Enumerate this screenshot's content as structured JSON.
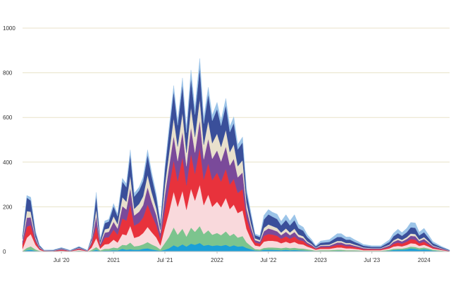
{
  "chart_data": {
    "type": "area",
    "stacked": true,
    "title": "",
    "xlabel": "",
    "ylabel": "",
    "ylim": [
      0,
      1000
    ],
    "xlim": [
      "2020-02-15",
      "2024-03-31"
    ],
    "grid": true,
    "legend": "none",
    "x_tick_labels": [
      {
        "date": "2020-07-01",
        "label": "Jul '20"
      },
      {
        "date": "2021-01-01",
        "label": "2021"
      },
      {
        "date": "2021-07-01",
        "label": "Jul '21"
      },
      {
        "date": "2022-01-01",
        "label": "2022"
      },
      {
        "date": "2022-07-01",
        "label": "Jul '22"
      },
      {
        "date": "2023-01-01",
        "label": "2023"
      },
      {
        "date": "2023-07-01",
        "label": "Jul '23"
      },
      {
        "date": "2024-01-01",
        "label": "2024"
      }
    ],
    "y_tick_labels": [
      0,
      200,
      400,
      600,
      800,
      1000
    ],
    "series_colors": [
      "#1aa0d8",
      "#7cc48e",
      "#f9d9dc",
      "#e8323c",
      "#7a4a9a",
      "#e8e0cc",
      "#3a4f9a",
      "#9cc4e8"
    ],
    "x": [
      "2020-02-15",
      "2020-03-01",
      "2020-03-15",
      "2020-04-01",
      "2020-04-15",
      "2020-05-01",
      "2020-06-01",
      "2020-07-01",
      "2020-08-01",
      "2020-09-01",
      "2020-10-01",
      "2020-10-15",
      "2020-11-01",
      "2020-11-15",
      "2020-12-01",
      "2020-12-15",
      "2021-01-01",
      "2021-01-15",
      "2021-02-01",
      "2021-02-15",
      "2021-03-01",
      "2021-03-15",
      "2021-04-01",
      "2021-04-15",
      "2021-05-01",
      "2021-05-15",
      "2021-06-01",
      "2021-06-15",
      "2021-07-01",
      "2021-07-15",
      "2021-08-01",
      "2021-08-15",
      "2021-09-01",
      "2021-09-15",
      "2021-10-01",
      "2021-10-15",
      "2021-11-01",
      "2021-11-15",
      "2021-12-01",
      "2021-12-15",
      "2022-01-01",
      "2022-01-15",
      "2022-02-01",
      "2022-02-15",
      "2022-03-01",
      "2022-03-15",
      "2022-04-01",
      "2022-04-15",
      "2022-05-01",
      "2022-05-15",
      "2022-06-01",
      "2022-06-15",
      "2022-07-01",
      "2022-07-15",
      "2022-08-01",
      "2022-08-15",
      "2022-09-01",
      "2022-09-15",
      "2022-10-01",
      "2022-10-15",
      "2022-11-01",
      "2022-11-15",
      "2022-12-01",
      "2022-12-15",
      "2023-01-01",
      "2023-02-01",
      "2023-03-01",
      "2023-03-15",
      "2023-04-01",
      "2023-04-15",
      "2023-05-01",
      "2023-05-15",
      "2023-06-01",
      "2023-07-01",
      "2023-08-01",
      "2023-09-01",
      "2023-09-15",
      "2023-10-01",
      "2023-10-15",
      "2023-11-01",
      "2023-11-15",
      "2023-12-01",
      "2023-12-15",
      "2024-01-01",
      "2024-01-15",
      "2024-02-01",
      "2024-03-01",
      "2024-03-31"
    ],
    "series": [
      {
        "values": [
          0,
          6,
          8,
          3,
          1,
          0,
          0,
          1,
          0,
          2,
          0,
          2,
          8,
          2,
          4,
          4,
          6,
          5,
          12,
          8,
          10,
          8,
          8,
          12,
          14,
          10,
          6,
          3,
          8,
          14,
          28,
          20,
          32,
          22,
          35,
          30,
          38,
          26,
          30,
          25,
          28,
          25,
          30,
          22,
          28,
          22,
          24,
          16,
          10,
          5,
          4,
          8,
          8,
          8,
          7,
          6,
          8,
          6,
          7,
          6,
          5,
          4,
          3,
          2,
          2,
          2,
          3,
          3,
          2,
          2,
          2,
          2,
          1,
          1,
          1,
          4,
          7,
          8,
          8,
          10,
          14,
          12,
          8,
          10,
          8,
          4,
          2,
          0
        ]
      },
      {
        "values": [
          2,
          10,
          15,
          6,
          2,
          0,
          0,
          1,
          0,
          2,
          0,
          5,
          12,
          3,
          8,
          8,
          12,
          10,
          18,
          20,
          30,
          15,
          18,
          20,
          28,
          22,
          16,
          6,
          30,
          50,
          80,
          55,
          70,
          45,
          72,
          58,
          76,
          52,
          65,
          50,
          55,
          48,
          60,
          48,
          52,
          40,
          45,
          25,
          14,
          6,
          5,
          8,
          10,
          10,
          10,
          9,
          10,
          9,
          10,
          8,
          8,
          6,
          4,
          2,
          4,
          4,
          5,
          5,
          4,
          4,
          4,
          3,
          2,
          2,
          2,
          4,
          5,
          5,
          5,
          7,
          8,
          8,
          7,
          8,
          6,
          4,
          2,
          0
        ]
      },
      {
        "values": [
          10,
          45,
          55,
          20,
          5,
          1,
          1,
          2,
          1,
          4,
          1,
          10,
          40,
          8,
          20,
          22,
          35,
          25,
          48,
          45,
          75,
          38,
          42,
          50,
          68,
          55,
          40,
          18,
          70,
          110,
          160,
          125,
          170,
          120,
          175,
          140,
          185,
          130,
          160,
          125,
          140,
          125,
          150,
          120,
          130,
          110,
          115,
          60,
          30,
          16,
          14,
          28,
          30,
          30,
          28,
          22,
          26,
          22,
          26,
          20,
          18,
          12,
          8,
          4,
          6,
          6,
          10,
          10,
          8,
          8,
          6,
          5,
          3,
          3,
          3,
          6,
          10,
          12,
          10,
          12,
          15,
          15,
          10,
          12,
          9,
          5,
          3,
          1
        ]
      },
      {
        "values": [
          20,
          50,
          40,
          15,
          5,
          2,
          1,
          4,
          1,
          4,
          1,
          15,
          55,
          10,
          30,
          30,
          45,
          35,
          70,
          65,
          95,
          55,
          60,
          70,
          100,
          78,
          55,
          30,
          80,
          110,
          140,
          115,
          150,
          110,
          155,
          120,
          165,
          115,
          140,
          120,
          130,
          115,
          130,
          110,
          115,
          90,
          95,
          50,
          30,
          14,
          12,
          26,
          30,
          28,
          25,
          20,
          24,
          20,
          24,
          18,
          16,
          10,
          8,
          4,
          7,
          8,
          12,
          12,
          10,
          10,
          8,
          7,
          5,
          4,
          4,
          7,
          12,
          15,
          12,
          15,
          18,
          18,
          12,
          14,
          10,
          6,
          3,
          1
        ]
      },
      {
        "values": [
          15,
          40,
          35,
          12,
          4,
          1,
          1,
          3,
          1,
          3,
          1,
          10,
          45,
          10,
          22,
          24,
          35,
          28,
          55,
          50,
          75,
          45,
          50,
          55,
          78,
          60,
          45,
          25,
          65,
          90,
          110,
          90,
          115,
          85,
          120,
          95,
          125,
          90,
          110,
          95,
          100,
          90,
          100,
          85,
          90,
          70,
          75,
          40,
          24,
          10,
          9,
          20,
          25,
          22,
          20,
          16,
          20,
          16,
          20,
          14,
          12,
          8,
          6,
          3,
          6,
          6,
          10,
          10,
          8,
          8,
          6,
          5,
          4,
          3,
          3,
          6,
          9,
          12,
          10,
          12,
          15,
          15,
          10,
          12,
          9,
          5,
          3,
          1
        ]
      },
      {
        "values": [
          10,
          30,
          25,
          8,
          3,
          1,
          1,
          2,
          1,
          2,
          1,
          8,
          30,
          6,
          15,
          16,
          25,
          20,
          40,
          35,
          55,
          30,
          35,
          40,
          55,
          42,
          30,
          16,
          45,
          60,
          80,
          65,
          85,
          60,
          90,
          70,
          95,
          65,
          80,
          70,
          75,
          65,
          75,
          60,
          65,
          50,
          55,
          28,
          16,
          8,
          7,
          15,
          18,
          16,
          15,
          12,
          15,
          12,
          15,
          10,
          9,
          6,
          4,
          2,
          4,
          5,
          7,
          7,
          6,
          6,
          5,
          4,
          3,
          2,
          2,
          4,
          7,
          8,
          7,
          8,
          10,
          10,
          7,
          8,
          6,
          3,
          2,
          1
        ]
      },
      {
        "values": [
          15,
          60,
          50,
          18,
          6,
          1,
          2,
          3,
          1,
          4,
          1,
          10,
          60,
          12,
          28,
          30,
          45,
          35,
          70,
          65,
          95,
          55,
          60,
          68,
          90,
          72,
          50,
          28,
          70,
          95,
          120,
          95,
          125,
          90,
          130,
          100,
          140,
          95,
          120,
          100,
          110,
          95,
          110,
          90,
          95,
          75,
          80,
          45,
          35,
          14,
          14,
          38,
          45,
          42,
          40,
          32,
          38,
          32,
          38,
          28,
          25,
          18,
          12,
          6,
          10,
          12,
          18,
          18,
          15,
          15,
          12,
          10,
          8,
          6,
          6,
          12,
          18,
          22,
          18,
          22,
          28,
          28,
          18,
          22,
          16,
          10,
          5,
          2
        ]
      },
      {
        "values": [
          2,
          10,
          15,
          8,
          3,
          1,
          1,
          2,
          1,
          2,
          1,
          4,
          15,
          5,
          10,
          10,
          12,
          10,
          15,
          15,
          20,
          15,
          15,
          18,
          22,
          18,
          14,
          8,
          12,
          20,
          25,
          20,
          30,
          25,
          35,
          30,
          40,
          28,
          30,
          25,
          30,
          25,
          30,
          25,
          28,
          22,
          24,
          15,
          12,
          6,
          6,
          18,
          22,
          20,
          22,
          18,
          24,
          20,
          25,
          18,
          16,
          12,
          8,
          4,
          8,
          10,
          15,
          15,
          12,
          12,
          10,
          8,
          6,
          5,
          5,
          10,
          14,
          18,
          15,
          18,
          22,
          22,
          15,
          18,
          14,
          8,
          4,
          1
        ]
      }
    ]
  }
}
